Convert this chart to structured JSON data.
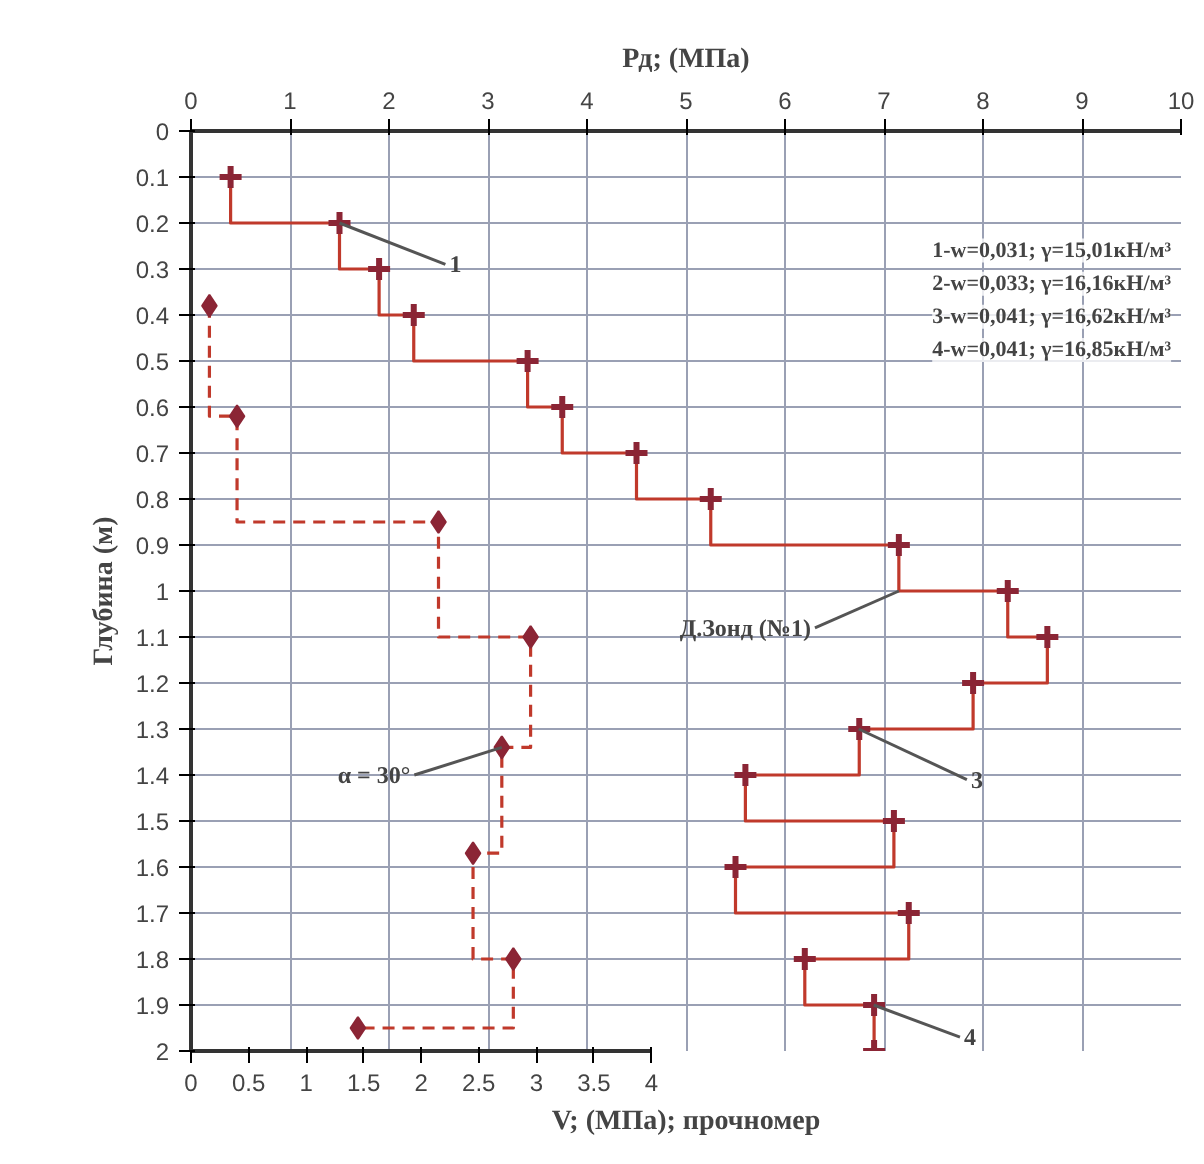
{
  "chart_data": {
    "type": "step",
    "xlabel": "V; (МПа); прочномер",
    "x2label": "Рд; (МПа)",
    "ylabel": "Глубина (м)",
    "xlim": [
      0,
      8.6
    ],
    "xticks": [
      0,
      0.5,
      1,
      1.5,
      2,
      2.5,
      3,
      3.5,
      4
    ],
    "x2lim": [
      0,
      10
    ],
    "x2ticks": [
      0,
      1,
      2,
      3,
      4,
      5,
      6,
      7,
      8,
      9,
      10
    ],
    "ylim": [
      2,
      0
    ],
    "yticks": [
      0,
      0.1,
      0.2,
      0.3,
      0.4,
      0.5,
      0.6,
      0.7,
      0.8,
      0.9,
      1,
      1.1,
      1.2,
      1.3,
      1.4,
      1.5,
      1.6,
      1.7,
      1.8,
      1.9,
      2
    ],
    "grid": true,
    "series": [
      {
        "axis": "x2",
        "color": "#c0392b",
        "marker": "cross",
        "line_style": "solid",
        "values": [
          0.1,
          0.2,
          0.3,
          0.4,
          0.5,
          0.6,
          0.7,
          0.8,
          0.9,
          1.0,
          1.1,
          1.2,
          1.3,
          1.4,
          1.5,
          1.6,
          1.7,
          1.8,
          1.9,
          2.0
        ],
        "x": [
          0.4,
          1.5,
          1.9,
          2.25,
          3.4,
          3.75,
          4.5,
          5.25,
          7.15,
          8.25,
          8.65,
          7.9,
          6.75,
          5.6,
          7.1,
          5.5,
          7.25,
          6.2,
          6.9,
          6.9
        ]
      },
      {
        "color": "#c0392b",
        "marker": "diamond",
        "line_style": "dashed",
        "values": [
          0.38,
          0.62,
          0.85,
          1.1,
          1.34,
          1.57,
          1.8,
          1.95
        ],
        "x": [
          0.16,
          0.4,
          2.15,
          2.95,
          2.7,
          2.45,
          2.8,
          1.45
        ]
      }
    ],
    "annotations": [
      "1-w=0,031; γ=15,01кН/м³",
      "2-w=0,033; γ=16,16кН/м³",
      "3-w=0,041; γ=16,62кН/м³",
      "4-w=0,041; γ=16,85кН/м³",
      {
        "text": "1",
        "x": 1.29,
        "y": 0.2
      },
      {
        "text": "Д.Зонд (№1)",
        "x": 6.15,
        "y": 1.0
      },
      {
        "text": "3",
        "x": 5.8,
        "y": 1.3
      },
      {
        "text": "4",
        "x": 5.93,
        "y": 1.9
      },
      {
        "text": "α = 30°",
        "x": 2.7,
        "y": 1.34
      }
    ]
  }
}
